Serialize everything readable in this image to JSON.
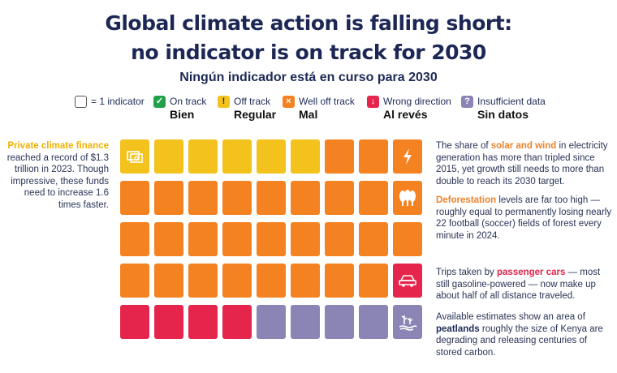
{
  "title": {
    "line1": "Global climate action is falling short:",
    "line2": "no indicator is on track for 2030",
    "subtitle": "Ningún indicador está en curso para 2030"
  },
  "legend": {
    "unit_label": "= 1 indicator",
    "items": [
      {
        "label": "On track",
        "label_es": "Bien",
        "color": "#23a14a",
        "icon": "check-icon",
        "glyph": "✓"
      },
      {
        "label": "Off track",
        "label_es": "Regular",
        "color": "#f3c21c",
        "icon": "exclamation-icon",
        "glyph": "!"
      },
      {
        "label": "Well off track",
        "label_es": "Mal",
        "color": "#f58220",
        "icon": "cross-icon",
        "glyph": "×"
      },
      {
        "label": "Wrong direction",
        "label_es": "Al revés",
        "color": "#e5254b",
        "icon": "down-arrow-icon",
        "glyph": "↓"
      },
      {
        "label": "Insufficient data",
        "label_es": "Sin datos",
        "color": "#8a85b5",
        "icon": "question-icon",
        "glyph": "?"
      }
    ]
  },
  "chart_data": {
    "type": "table",
    "description_units": "indicators",
    "status_order": [
      "Off track",
      "Well off track",
      "Wrong direction",
      "Insufficient data"
    ],
    "rows": [
      [
        "Off track",
        "Off track",
        "Off track",
        "Off track",
        "Off track",
        "Off track",
        "Well off track",
        "Well off track",
        "Well off track"
      ],
      [
        "Well off track",
        "Well off track",
        "Well off track",
        "Well off track",
        "Well off track",
        "Well off track",
        "Well off track",
        "Well off track",
        "Well off track"
      ],
      [
        "Well off track",
        "Well off track",
        "Well off track",
        "Well off track",
        "Well off track",
        "Well off track",
        "Well off track",
        "Well off track",
        "Well off track"
      ],
      [
        "Well off track",
        "Well off track",
        "Well off track",
        "Well off track",
        "Well off track",
        "Well off track",
        "Well off track",
        "Well off track",
        "Wrong direction"
      ],
      [
        "Wrong direction",
        "Wrong direction",
        "Wrong direction",
        "Wrong direction",
        "Insufficient data",
        "Insufficient data",
        "Insufficient data",
        "Insufficient data",
        "Insufficient data"
      ]
    ],
    "counts": {
      "On track": 0,
      "Off track": 6,
      "Well off track": 29,
      "Wrong direction": 5,
      "Insufficient data": 5
    },
    "icon_cells": [
      {
        "row": 0,
        "col": 0,
        "icon": "money-icon"
      },
      {
        "row": 0,
        "col": 8,
        "icon": "lightning-icon"
      },
      {
        "row": 1,
        "col": 8,
        "icon": "trees-icon"
      },
      {
        "row": 3,
        "col": 8,
        "icon": "car-icon"
      },
      {
        "row": 4,
        "col": 8,
        "icon": "peatland-icon"
      }
    ],
    "colors": {
      "Off track": "#f3c21c",
      "Well off track": "#f58220",
      "Wrong direction": "#e5254b",
      "Insufficient data": "#8a85b5"
    }
  },
  "notes": {
    "finance": {
      "hl": "Private climate finance",
      "rest": "reached a record of $1.3 trillion in 2023. Though impressive, these funds need to increase 1.6 times faster."
    },
    "solar": {
      "pre": "The share of ",
      "hl": "solar and wind",
      "rest": " in electricity generation has more than tripled since 2015, yet growth still needs to more than double to reach its 2030 target."
    },
    "deforestation": {
      "hl": "Deforestation",
      "rest": " levels are far too high — roughly equal to permanently losing nearly 22 football (soccer) fields of forest every minute in 2024."
    },
    "cars": {
      "pre": "Trips taken by ",
      "hl": "passenger cars",
      "rest": " — most still gasoline-powered — now make up about half of all distance traveled."
    },
    "peat": {
      "pre": "Available estimates show an area of ",
      "hl": "peatlands",
      "rest": " roughly the size of Kenya are degrading and releasing centuries of stored carbon."
    }
  }
}
